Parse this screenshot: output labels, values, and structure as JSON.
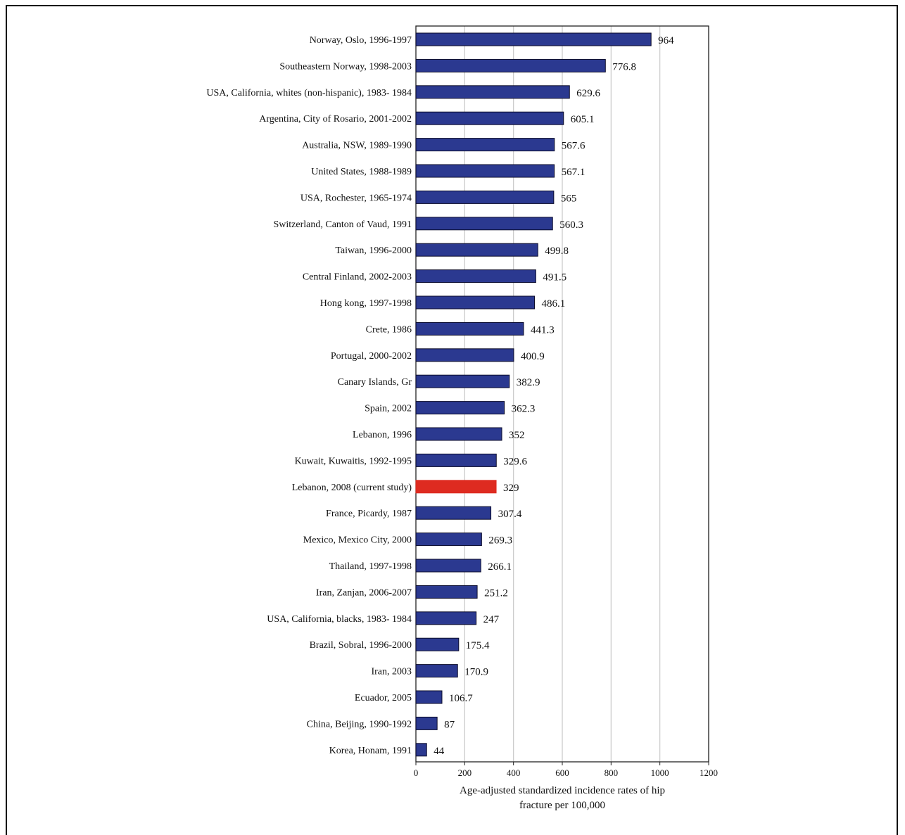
{
  "chart_data": {
    "type": "bar",
    "orientation": "horizontal",
    "categories": [
      "Norway, Oslo, 1996-1997",
      "Southeastern Norway, 1998-2003",
      "USA, California, whites (non-hispanic), 1983- 1984",
      "Argentina, City of Rosario, 2001-2002",
      "Australia, NSW, 1989-1990",
      "United States, 1988-1989",
      "USA, Rochester, 1965-1974",
      "Switzerland, Canton of Vaud, 1991",
      "Taiwan, 1996-2000",
      "Central Finland, 2002-2003",
      "Hong kong, 1997-1998",
      "Crete, 1986",
      "Portugal, 2000-2002",
      "Canary Islands, Gr",
      "Spain, 2002",
      "Lebanon, 1996",
      "Kuwait, Kuwaitis, 1992-1995",
      "Lebanon, 2008 (current study)",
      "France, Picardy, 1987",
      "Mexico, Mexico City, 2000",
      "Thailand, 1997-1998",
      "Iran, Zanjan, 2006-2007",
      "USA, California, blacks, 1983- 1984",
      "Brazil, Sobral, 1996-2000",
      "Iran, 2003",
      "Ecuador, 2005",
      "China, Beijing, 1990-1992",
      "Korea, Honam, 1991"
    ],
    "values": [
      964,
      776.8,
      629.6,
      605.1,
      567.6,
      567.1,
      565,
      560.3,
      499.8,
      491.5,
      486.1,
      441.3,
      400.9,
      382.9,
      362.3,
      352,
      329.6,
      329,
      307.4,
      269.3,
      266.1,
      251.2,
      247,
      175.4,
      170.9,
      106.7,
      87,
      44
    ],
    "value_labels": [
      "964",
      "776.8",
      "629.6",
      "605.1",
      "567.6",
      "567.1",
      "565",
      "560.3",
      "499.8",
      "491.5",
      "486.1",
      "441.3",
      "400.9",
      "382.9",
      "362.3",
      "352",
      "329.6",
      "329",
      "307.4",
      "269.3",
      "266.1",
      "251.2",
      "247",
      "175.4",
      "170.9",
      "106.7",
      "87",
      "44"
    ],
    "highlight_category": "Lebanon, 2008 (current study)",
    "xlim": [
      0,
      1200
    ],
    "xticks": [
      0,
      200,
      400,
      600,
      800,
      1000,
      1200
    ],
    "xtick_labels": [
      "0",
      "200",
      "400",
      "600",
      "800",
      "1000",
      "1200"
    ],
    "xlabel_lines": [
      "Age-adjusted standardized incidence rates of hip",
      "fracture per 100,000"
    ],
    "grid": "vertical",
    "colors": {
      "bar": "#2b3990",
      "bar_edge": "#0c0c2a",
      "highlight": "#de2b20",
      "grid": "#c8c8c8",
      "axis": "#222222"
    }
  }
}
